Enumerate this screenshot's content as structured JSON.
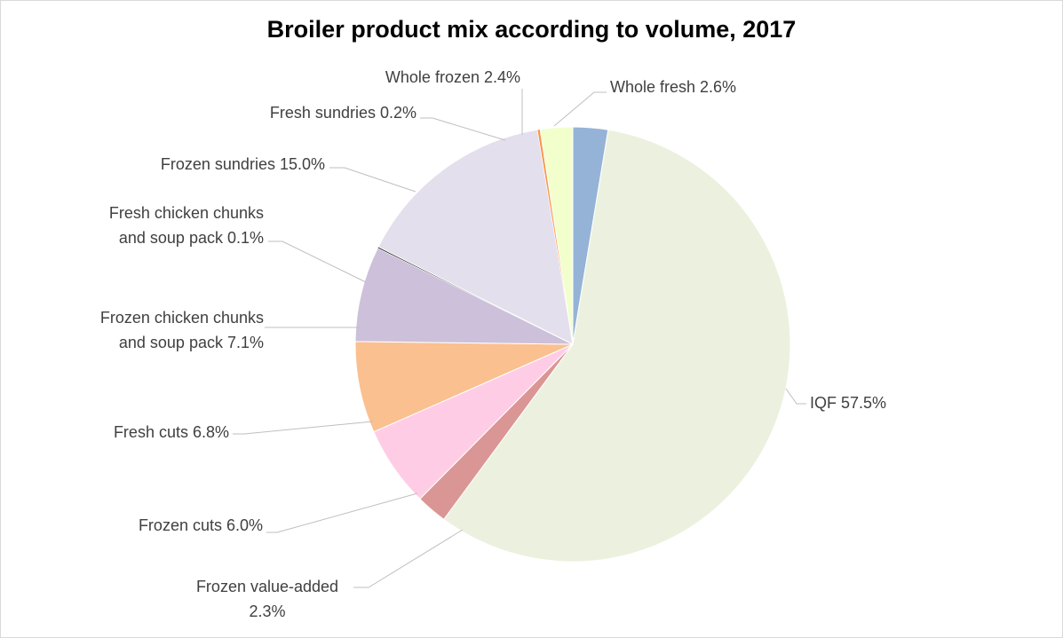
{
  "chart_data": {
    "type": "pie",
    "title": "Broiler product mix according to volume, 2017",
    "slices": [
      {
        "label": "Whole fresh 2.6%",
        "lines": [
          "Whole fresh 2.6%"
        ],
        "value": 2.6,
        "color": "#95b3d7"
      },
      {
        "label": "IQF 57.5%",
        "lines": [
          "IQF 57.5%"
        ],
        "value": 57.5,
        "color": "#ebf1de"
      },
      {
        "label": "Frozen value-added 2.3%",
        "lines": [
          "Frozen value-added",
          "2.3%"
        ],
        "value": 2.3,
        "color": "#da9694"
      },
      {
        "label": "Frozen cuts 6.0%",
        "lines": [
          "Frozen cuts 6.0%"
        ],
        "value": 6.0,
        "color": "#ffcce6"
      },
      {
        "label": "Fresh cuts 6.8%",
        "lines": [
          "Fresh cuts 6.8%"
        ],
        "value": 6.8,
        "color": "#fac090"
      },
      {
        "label": "Frozen chicken chunks and soup pack 7.1%",
        "lines": [
          "Frozen chicken chunks",
          "and soup pack 7.1%"
        ],
        "value": 7.1,
        "color": "#ccc0da"
      },
      {
        "label": "Fresh chicken chunks and soup pack 0.1%",
        "lines": [
          "Fresh chicken chunks",
          "and soup pack 0.1%"
        ],
        "value": 0.1,
        "color": "#000000"
      },
      {
        "label": "Frozen sundries 15.0%",
        "lines": [
          "Frozen sundries 15.0%"
        ],
        "value": 15.0,
        "color": "#e4dfec"
      },
      {
        "label": "Fresh sundries 0.2%",
        "lines": [
          "Fresh sundries 0.2%"
        ],
        "value": 0.2,
        "color": "#f79646"
      },
      {
        "label": "Whole frozen 2.4%",
        "lines": [
          "Whole frozen 2.4%"
        ],
        "value": 2.4,
        "color": "#f2ffcc"
      }
    ],
    "start_angle": "12 o'clock",
    "direction": "clockwise",
    "legend": "none",
    "data_labels": "outside with leader lines"
  }
}
